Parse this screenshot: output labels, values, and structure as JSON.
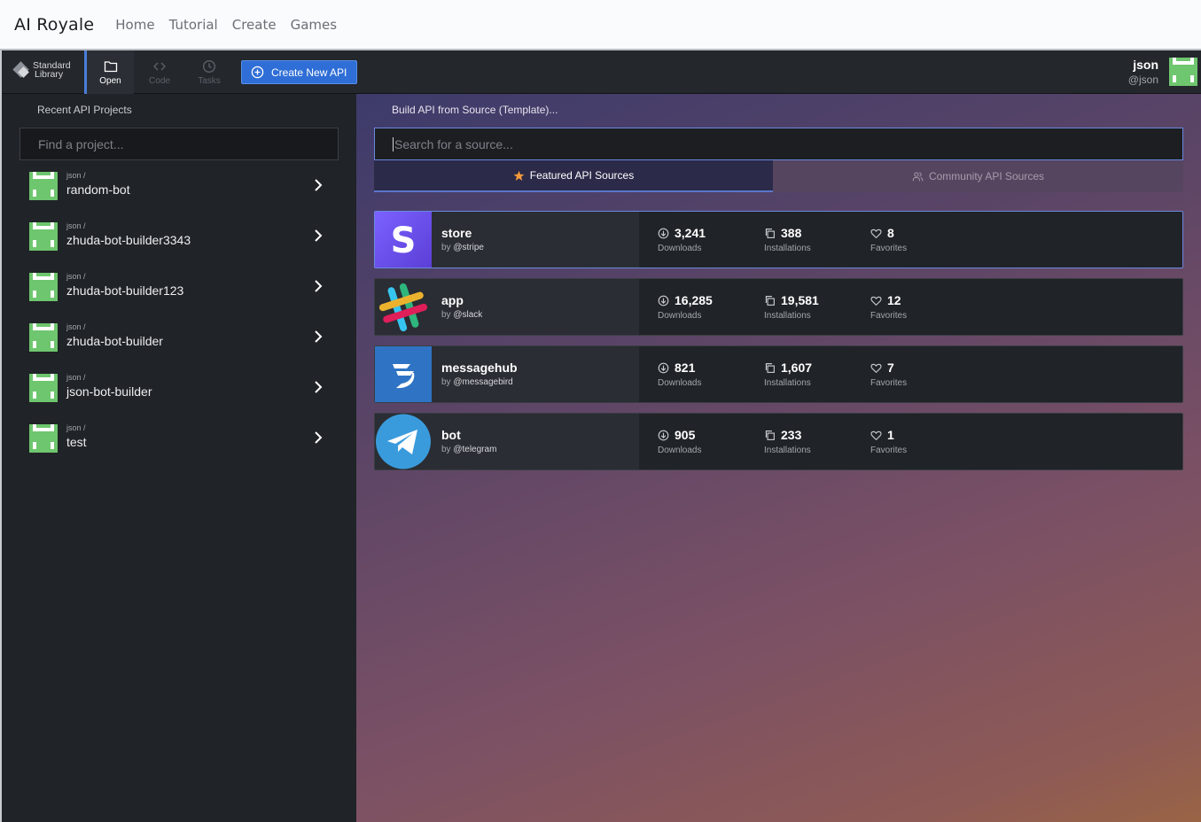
{
  "site": {
    "brand": "AI Royale",
    "nav": [
      "Home",
      "Tutorial",
      "Create",
      "Games"
    ]
  },
  "toolbar": {
    "stdlib_line1": "Standard",
    "stdlib_line2": "Library",
    "open_label": "Open",
    "code_label": "Code",
    "tasks_label": "Tasks",
    "create_label": "Create New API",
    "user_name": "json",
    "user_handle": "@json"
  },
  "sidebar": {
    "title": "Recent API Projects",
    "search_placeholder": "Find a project...",
    "projects": [
      {
        "owner": "json /",
        "name": "random-bot"
      },
      {
        "owner": "json /",
        "name": "zhuda-bot-builder3343"
      },
      {
        "owner": "json /",
        "name": "zhuda-bot-builder123"
      },
      {
        "owner": "json /",
        "name": "zhuda-bot-builder"
      },
      {
        "owner": "json /",
        "name": "json-bot-builder"
      },
      {
        "owner": "json /",
        "name": "test"
      }
    ]
  },
  "main": {
    "title": "Build API from Source (Template)...",
    "search_placeholder": "Search for a source...",
    "tabs": [
      "Featured API Sources",
      "Community API Sources"
    ],
    "labels": {
      "downloads": "Downloads",
      "installations": "Installations",
      "favorites": "Favorites"
    },
    "sources": [
      {
        "name": "store",
        "by": "by",
        "author": "@stripe",
        "downloads": "3,241",
        "installations": "388",
        "favorites": "8",
        "logo": "stripe-logo"
      },
      {
        "name": "app",
        "by": "by",
        "author": "@slack",
        "downloads": "16,285",
        "installations": "19,581",
        "favorites": "12",
        "logo": "slack-logo"
      },
      {
        "name": "messagehub",
        "by": "by",
        "author": "@messagebird",
        "downloads": "821",
        "installations": "1,607",
        "favorites": "7",
        "logo": "messagebird-logo"
      },
      {
        "name": "bot",
        "by": "by",
        "author": "@telegram",
        "downloads": "905",
        "installations": "233",
        "favorites": "1",
        "logo": "telegram-logo"
      }
    ]
  },
  "colors": {
    "accent": "#2f6ed6",
    "avatar_green": "#6ec66e",
    "star": "#f59a3b"
  }
}
